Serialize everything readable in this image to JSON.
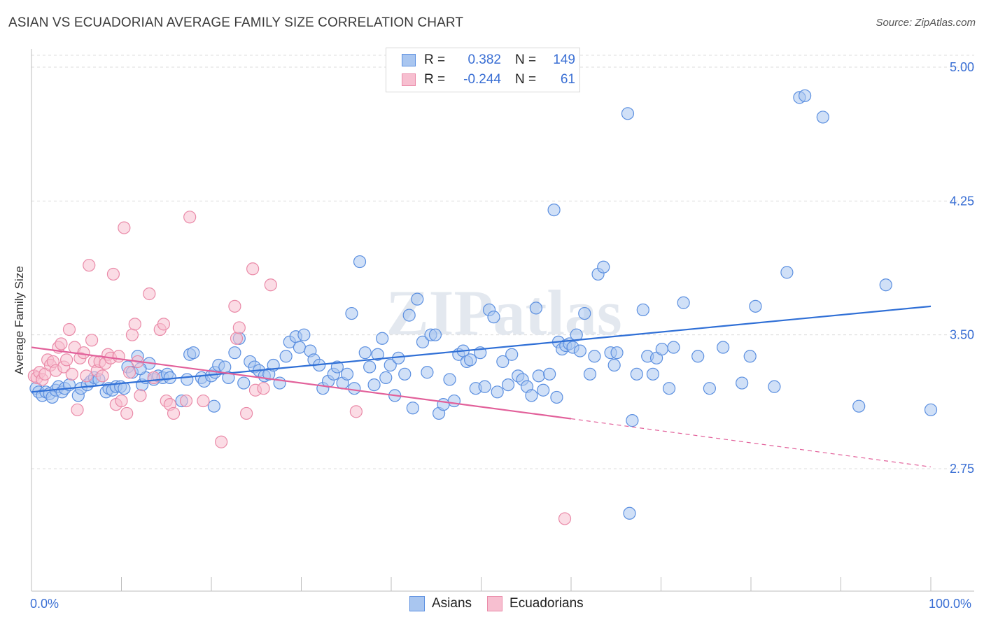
{
  "title": "ASIAN VS ECUADORIAN AVERAGE FAMILY SIZE CORRELATION CHART",
  "source": "Source: ZipAtlas.com",
  "colors": {
    "asian_fill": "#a9c6f0",
    "asian_stroke": "#5b8fe0",
    "asian_line": "#2f6fd6",
    "ecuadorian_fill": "#f7bfd0",
    "ecuadorian_stroke": "#ea8aa8",
    "ecuadorian_line": "#e2609a",
    "tick_label": "#3a6fd4"
  },
  "legend": {
    "rows": [
      {
        "r_label": "R =",
        "r_value": "0.382",
        "n_label": "N =",
        "n_value": "149"
      },
      {
        "r_label": "R =",
        "r_value": "-0.244",
        "n_label": "N =",
        "n_value": "61"
      }
    ]
  },
  "bottom_legend": {
    "asians": "Asians",
    "ecuadorians": "Ecuadorians"
  },
  "watermark": "ZIPatlas",
  "chart_data": {
    "type": "scatter",
    "title": "ASIAN VS ECUADORIAN AVERAGE FAMILY SIZE CORRELATION CHART",
    "xlabel": "",
    "ylabel": "Average Family Size",
    "x_tick_labels": [
      "0.0%",
      "100.0%"
    ],
    "y_ticks": [
      2.75,
      3.5,
      4.25,
      5.0
    ],
    "y_tick_labels": [
      "2.75",
      "3.50",
      "4.25",
      "5.00"
    ],
    "xlim": [
      0,
      100
    ],
    "ylim": [
      2.0,
      5.07
    ],
    "grid": true,
    "legend_position": "top-center",
    "series": [
      {
        "name": "Asians",
        "r": 0.382,
        "n": 149,
        "trend": {
          "x": [
            0,
            100
          ],
          "y": [
            3.18,
            3.66
          ],
          "style": "solid"
        },
        "points": [
          [
            0.5,
            3.2
          ],
          [
            0.8,
            3.18
          ],
          [
            1.2,
            3.16
          ],
          [
            1.6,
            3.18
          ],
          [
            2.0,
            3.17
          ],
          [
            2.3,
            3.15
          ],
          [
            2.7,
            3.19
          ],
          [
            3.0,
            3.21
          ],
          [
            3.4,
            3.18
          ],
          [
            3.7,
            3.2
          ],
          [
            4.2,
            3.22
          ],
          [
            5.2,
            3.16
          ],
          [
            5.5,
            3.2
          ],
          [
            6.2,
            3.22
          ],
          [
            6.6,
            3.24
          ],
          [
            7.0,
            3.26
          ],
          [
            7.5,
            3.25
          ],
          [
            8.3,
            3.18
          ],
          [
            8.6,
            3.2
          ],
          [
            9.0,
            3.19
          ],
          [
            9.4,
            3.21
          ],
          [
            9.9,
            3.21
          ],
          [
            10.3,
            3.2
          ],
          [
            10.7,
            3.32
          ],
          [
            11.2,
            3.29
          ],
          [
            11.8,
            3.38
          ],
          [
            12.3,
            3.22
          ],
          [
            12.7,
            3.26
          ],
          [
            13.1,
            3.34
          ],
          [
            13.6,
            3.25
          ],
          [
            14.1,
            3.27
          ],
          [
            14.6,
            3.26
          ],
          [
            15.1,
            3.28
          ],
          [
            15.4,
            3.26
          ],
          [
            16.7,
            3.13
          ],
          [
            17.3,
            3.25
          ],
          [
            17.6,
            3.39
          ],
          [
            18.0,
            3.4
          ],
          [
            18.9,
            3.26
          ],
          [
            19.2,
            3.24
          ],
          [
            20.0,
            3.27
          ],
          [
            20.4,
            3.29
          ],
          [
            20.8,
            3.33
          ],
          [
            21.5,
            3.32
          ],
          [
            21.9,
            3.26
          ],
          [
            22.6,
            3.4
          ],
          [
            23.1,
            3.48
          ],
          [
            23.6,
            3.23
          ],
          [
            24.3,
            3.35
          ],
          [
            24.8,
            3.32
          ],
          [
            25.3,
            3.3
          ],
          [
            25.9,
            3.27
          ],
          [
            26.4,
            3.28
          ],
          [
            26.9,
            3.33
          ],
          [
            27.6,
            3.23
          ],
          [
            28.3,
            3.38
          ],
          [
            28.7,
            3.46
          ],
          [
            29.4,
            3.49
          ],
          [
            29.8,
            3.43
          ],
          [
            30.3,
            3.5
          ],
          [
            31.0,
            3.41
          ],
          [
            31.4,
            3.36
          ],
          [
            32.0,
            3.33
          ],
          [
            32.4,
            3.2
          ],
          [
            33.0,
            3.24
          ],
          [
            33.6,
            3.28
          ],
          [
            34.0,
            3.32
          ],
          [
            34.6,
            3.23
          ],
          [
            35.1,
            3.28
          ],
          [
            35.6,
            3.62
          ],
          [
            35.9,
            3.2
          ],
          [
            36.5,
            3.91
          ],
          [
            37.1,
            3.4
          ],
          [
            37.6,
            3.32
          ],
          [
            38.1,
            3.22
          ],
          [
            38.5,
            3.39
          ],
          [
            39.0,
            3.48
          ],
          [
            39.4,
            3.26
          ],
          [
            39.9,
            3.33
          ],
          [
            40.4,
            3.16
          ],
          [
            40.8,
            3.37
          ],
          [
            41.5,
            3.28
          ],
          [
            42.0,
            3.61
          ],
          [
            42.4,
            3.09
          ],
          [
            42.9,
            3.7
          ],
          [
            43.5,
            3.46
          ],
          [
            44.0,
            3.29
          ],
          [
            44.4,
            3.5
          ],
          [
            44.9,
            3.5
          ],
          [
            45.3,
            3.06
          ],
          [
            45.8,
            3.11
          ],
          [
            46.5,
            3.25
          ],
          [
            47.0,
            3.13
          ],
          [
            47.5,
            3.39
          ],
          [
            48.0,
            3.41
          ],
          [
            48.4,
            3.35
          ],
          [
            48.8,
            3.36
          ],
          [
            49.4,
            3.2
          ],
          [
            49.9,
            3.4
          ],
          [
            50.4,
            3.21
          ],
          [
            50.9,
            3.64
          ],
          [
            51.4,
            3.6
          ],
          [
            51.8,
            3.18
          ],
          [
            52.4,
            3.35
          ],
          [
            53.0,
            3.22
          ],
          [
            53.4,
            3.39
          ],
          [
            54.1,
            3.27
          ],
          [
            54.6,
            3.25
          ],
          [
            55.1,
            3.21
          ],
          [
            55.6,
            3.16
          ],
          [
            56.1,
            3.65
          ],
          [
            56.4,
            3.27
          ],
          [
            56.9,
            3.19
          ],
          [
            57.6,
            3.28
          ],
          [
            58.1,
            4.2
          ],
          [
            58.6,
            3.46
          ],
          [
            59.0,
            3.42
          ],
          [
            59.4,
            3.44
          ],
          [
            59.8,
            3.45
          ],
          [
            60.2,
            3.43
          ],
          [
            60.6,
            3.5
          ],
          [
            61.0,
            3.41
          ],
          [
            61.5,
            3.62
          ],
          [
            62.1,
            3.28
          ],
          [
            62.6,
            3.38
          ],
          [
            63.0,
            3.84
          ],
          [
            63.6,
            3.88
          ],
          [
            64.4,
            3.4
          ],
          [
            64.8,
            3.33
          ],
          [
            65.1,
            3.4
          ],
          [
            66.3,
            4.74
          ],
          [
            67.3,
            3.28
          ],
          [
            68.0,
            3.64
          ],
          [
            68.5,
            3.38
          ],
          [
            69.1,
            3.28
          ],
          [
            69.5,
            3.37
          ],
          [
            70.1,
            3.42
          ],
          [
            70.9,
            3.2
          ],
          [
            72.5,
            3.68
          ],
          [
            74.1,
            3.38
          ],
          [
            75.4,
            3.2
          ],
          [
            79.0,
            3.23
          ],
          [
            79.9,
            3.38
          ],
          [
            80.5,
            3.66
          ],
          [
            82.6,
            3.21
          ],
          [
            84.0,
            3.85
          ],
          [
            85.4,
            4.83
          ],
          [
            86.0,
            4.84
          ],
          [
            88.0,
            4.72
          ],
          [
            92.0,
            3.1
          ],
          [
            95.0,
            3.78
          ],
          [
            100.0,
            3.08
          ],
          [
            66.5,
            2.5
          ],
          [
            66.8,
            3.02
          ],
          [
            58.4,
            3.15
          ],
          [
            71.4,
            3.43
          ],
          [
            76.9,
            3.43
          ],
          [
            20.3,
            3.1
          ],
          [
            12.1,
            3.31
          ]
        ]
      },
      {
        "name": "Ecuadorians",
        "r": -0.244,
        "n": 61,
        "trend": {
          "x": [
            0,
            60
          ],
          "y": [
            3.43,
            3.03
          ],
          "style": "solid"
        },
        "trend_extension": {
          "x": [
            60,
            100
          ],
          "y": [
            3.03,
            2.76
          ],
          "style": "dashed"
        },
        "points": [
          [
            0.3,
            3.27
          ],
          [
            0.6,
            3.26
          ],
          [
            0.9,
            3.29
          ],
          [
            1.2,
            3.25
          ],
          [
            1.5,
            3.28
          ],
          [
            1.8,
            3.36
          ],
          [
            2.1,
            3.33
          ],
          [
            2.4,
            3.35
          ],
          [
            2.7,
            3.3
          ],
          [
            3.0,
            3.43
          ],
          [
            3.3,
            3.45
          ],
          [
            3.6,
            3.32
          ],
          [
            3.9,
            3.36
          ],
          [
            4.2,
            3.53
          ],
          [
            4.5,
            3.28
          ],
          [
            4.8,
            3.43
          ],
          [
            5.1,
            3.08
          ],
          [
            5.4,
            3.37
          ],
          [
            5.8,
            3.4
          ],
          [
            6.1,
            3.27
          ],
          [
            6.4,
            3.89
          ],
          [
            6.7,
            3.47
          ],
          [
            7.0,
            3.35
          ],
          [
            7.3,
            3.3
          ],
          [
            7.6,
            3.35
          ],
          [
            7.9,
            3.27
          ],
          [
            8.2,
            3.34
          ],
          [
            8.5,
            3.39
          ],
          [
            8.8,
            3.37
          ],
          [
            9.1,
            3.84
          ],
          [
            9.4,
            3.11
          ],
          [
            9.7,
            3.38
          ],
          [
            10.0,
            3.13
          ],
          [
            10.3,
            4.1
          ],
          [
            10.6,
            3.06
          ],
          [
            10.9,
            3.29
          ],
          [
            11.2,
            3.5
          ],
          [
            11.5,
            3.56
          ],
          [
            11.8,
            3.35
          ],
          [
            12.1,
            3.16
          ],
          [
            13.1,
            3.73
          ],
          [
            13.6,
            3.26
          ],
          [
            14.3,
            3.53
          ],
          [
            14.7,
            3.56
          ],
          [
            15.0,
            3.13
          ],
          [
            15.4,
            3.11
          ],
          [
            15.8,
            3.06
          ],
          [
            17.2,
            3.13
          ],
          [
            17.6,
            4.16
          ],
          [
            19.1,
            3.13
          ],
          [
            21.1,
            2.9
          ],
          [
            22.6,
            3.66
          ],
          [
            22.8,
            3.48
          ],
          [
            23.1,
            3.54
          ],
          [
            23.9,
            3.06
          ],
          [
            24.6,
            3.87
          ],
          [
            24.9,
            3.19
          ],
          [
            25.8,
            3.2
          ],
          [
            26.6,
            3.78
          ],
          [
            36.1,
            3.07
          ],
          [
            59.3,
            2.47
          ]
        ]
      }
    ]
  }
}
